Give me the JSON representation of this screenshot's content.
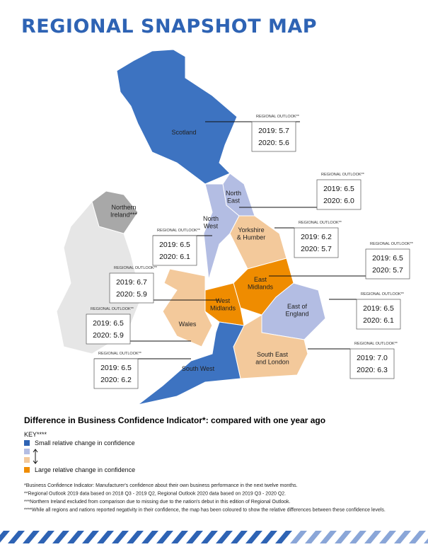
{
  "header": {
    "title": "REGIONAL SNAPSHOT MAP"
  },
  "regions": [
    {
      "label": [
        "Scotland"
      ],
      "outlook": {
        "heading": "REGIONAL OUTLOOK**",
        "line_2019": "2019: 5.7",
        "line_2020": "2020: 5.6"
      }
    },
    {
      "label": [
        "North",
        "East"
      ],
      "outlook": {
        "heading": "REGIONAL OUTLOOK**",
        "line_2019": "2019: 6.5",
        "line_2020": "2020: 6.0"
      }
    },
    {
      "label": [
        "North",
        "West"
      ],
      "outlook": {
        "heading": "REGIONAL OUTLOOK**",
        "line_2019": "2019: 6.5",
        "line_2020": "2020: 6.1"
      }
    },
    {
      "label": [
        "Yorkshire",
        "& Humber"
      ],
      "outlook": {
        "heading": "REGIONAL OUTLOOK**",
        "line_2019": "2019: 6.2",
        "line_2020": "2020: 5.7"
      }
    },
    {
      "label": [
        "East",
        "Midlands"
      ],
      "outlook": {
        "heading": "REGIONAL OUTLOOK**",
        "line_2019": "2019: 6.5",
        "line_2020": "2020: 5.7"
      }
    },
    {
      "label": [
        "West",
        "Midlands"
      ],
      "outlook": {
        "heading": "REGIONAL OUTLOOK**",
        "line_2019": "2019: 6.7",
        "line_2020": "2020: 5.9"
      }
    },
    {
      "label": [
        "East of",
        "England"
      ],
      "outlook": {
        "heading": "REGIONAL OUTLOOK**",
        "line_2019": "2019: 6.5",
        "line_2020": "2020: 6.1"
      }
    },
    {
      "label": [
        "Wales"
      ],
      "outlook": {
        "heading": "REGIONAL OUTLOOK**",
        "line_2019": "2019: 6.5",
        "line_2020": "2020: 5.9"
      }
    },
    {
      "label": [
        "South East",
        "and London"
      ],
      "outlook": {
        "heading": "REGIONAL OUTLOOK**",
        "line_2019": "2019: 7.0",
        "line_2020": "2020: 6.3"
      }
    },
    {
      "label": [
        "South West"
      ],
      "outlook": {
        "heading": "REGIONAL OUTLOOK**",
        "line_2019": "2019: 6.5",
        "line_2020": "2020: 6.2"
      }
    },
    {
      "label": [
        "Northern",
        "Ireland***"
      ]
    }
  ],
  "key": {
    "heading": "Difference in Business Confidence Indicator*: compared with one year ago",
    "title": "KEY****",
    "small": "Small relative change in confidence",
    "large": "Large relative change in confidence"
  },
  "footnotes": [
    "*Business Confidence Indicator: Manufacturer's confidence about their own business performance in the next twelve months.",
    "**Regional Outlook 2019 data based on 2018 Q3 - 2019 Q2, Regional Outlook 2020 data based on 2019 Q3 - 2020 Q2.",
    "***Northern Ireland excluded from comparison due to missing due to the nation's debut in this edition of Regional Outlook.",
    "****While all regions and nations reported negativity in their confidence, the map has been coloured to show the relative differences between these confidence levels."
  ]
}
